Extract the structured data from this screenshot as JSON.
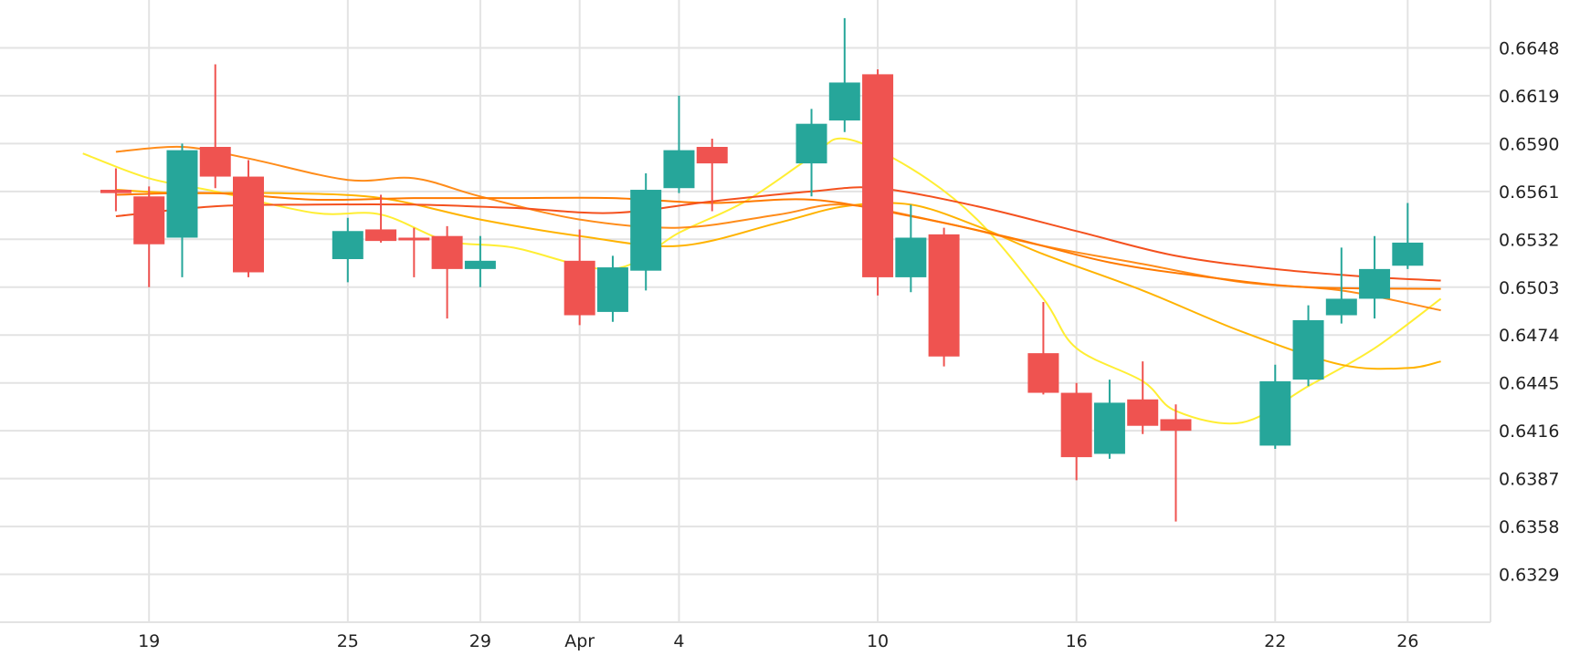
{
  "chart_data": {
    "type": "candlestick",
    "title": "",
    "xlabel": "",
    "ylabel": "",
    "ylim": [
      0.63,
      0.6677
    ],
    "y_ticks": [
      "0.6648",
      "0.6619",
      "0.6590",
      "0.6561",
      "0.6532",
      "0.6503",
      "0.6474",
      "0.6445",
      "0.6416",
      "0.6387",
      "0.6358",
      "0.6329"
    ],
    "x_ticks": [
      {
        "label": "19",
        "date": "2024-03-19"
      },
      {
        "label": "25",
        "date": "2024-03-25"
      },
      {
        "label": "29",
        "date": "2024-03-29"
      },
      {
        "label": "Apr",
        "date": "2024-04-01"
      },
      {
        "label": "4",
        "date": "2024-04-04"
      },
      {
        "label": "10",
        "date": "2024-04-10"
      },
      {
        "label": "16",
        "date": "2024-04-16"
      },
      {
        "label": "22",
        "date": "2024-04-22"
      },
      {
        "label": "26",
        "date": "2024-04-26"
      }
    ],
    "x_range": [
      "2024-03-14T12:00",
      "2024-04-28T12:00"
    ],
    "grid": true,
    "colors": {
      "up": "#26a69a",
      "down": "#ef5350",
      "grid": "#e3e3e3"
    },
    "candles": [
      {
        "date": "2024-03-18",
        "open": 0.6562,
        "high": 0.6575,
        "low": 0.6549,
        "close": 0.656
      },
      {
        "date": "2024-03-19",
        "open": 0.6558,
        "high": 0.6564,
        "low": 0.6503,
        "close": 0.6529
      },
      {
        "date": "2024-03-20",
        "open": 0.6533,
        "high": 0.659,
        "low": 0.6509,
        "close": 0.6586
      },
      {
        "date": "2024-03-21",
        "open": 0.6588,
        "high": 0.6638,
        "low": 0.6563,
        "close": 0.657
      },
      {
        "date": "2024-03-22",
        "open": 0.657,
        "high": 0.658,
        "low": 0.6509,
        "close": 0.6512
      },
      {
        "date": "2024-03-25",
        "open": 0.652,
        "high": 0.6545,
        "low": 0.6506,
        "close": 0.6537
      },
      {
        "date": "2024-03-26",
        "open": 0.6538,
        "high": 0.6559,
        "low": 0.653,
        "close": 0.6531
      },
      {
        "date": "2024-03-27",
        "open": 0.6533,
        "high": 0.6539,
        "low": 0.6509,
        "close": 0.6532
      },
      {
        "date": "2024-03-28",
        "open": 0.6534,
        "high": 0.654,
        "low": 0.6484,
        "close": 0.6514
      },
      {
        "date": "2024-03-29",
        "open": 0.6514,
        "high": 0.6534,
        "low": 0.6503,
        "close": 0.6519
      },
      {
        "date": "2024-04-01",
        "open": 0.6519,
        "high": 0.6538,
        "low": 0.648,
        "close": 0.6486
      },
      {
        "date": "2024-04-02",
        "open": 0.6488,
        "high": 0.6522,
        "low": 0.6482,
        "close": 0.6515
      },
      {
        "date": "2024-04-03",
        "open": 0.6513,
        "high": 0.6572,
        "low": 0.6501,
        "close": 0.6562
      },
      {
        "date": "2024-04-04",
        "open": 0.6563,
        "high": 0.6619,
        "low": 0.656,
        "close": 0.6586
      },
      {
        "date": "2024-04-05",
        "open": 0.6588,
        "high": 0.6593,
        "low": 0.6549,
        "close": 0.6578
      },
      {
        "date": "2024-04-08",
        "open": 0.6578,
        "high": 0.6611,
        "low": 0.6558,
        "close": 0.6602
      },
      {
        "date": "2024-04-09",
        "open": 0.6604,
        "high": 0.6666,
        "low": 0.6597,
        "close": 0.6627
      },
      {
        "date": "2024-04-10",
        "open": 0.6632,
        "high": 0.6635,
        "low": 0.6498,
        "close": 0.6509
      },
      {
        "date": "2024-04-11",
        "open": 0.6509,
        "high": 0.6553,
        "low": 0.65,
        "close": 0.6533
      },
      {
        "date": "2024-04-12",
        "open": 0.6535,
        "high": 0.6539,
        "low": 0.6455,
        "close": 0.6461
      },
      {
        "date": "2024-04-15",
        "open": 0.6463,
        "high": 0.6494,
        "low": 0.6438,
        "close": 0.6439
      },
      {
        "date": "2024-04-16",
        "open": 0.6439,
        "high": 0.6445,
        "low": 0.6386,
        "close": 0.64
      },
      {
        "date": "2024-04-17",
        "open": 0.6402,
        "high": 0.6447,
        "low": 0.6399,
        "close": 0.6433
      },
      {
        "date": "2024-04-18",
        "open": 0.6435,
        "high": 0.6458,
        "low": 0.6414,
        "close": 0.6419
      },
      {
        "date": "2024-04-19",
        "open": 0.6423,
        "high": 0.6432,
        "low": 0.6361,
        "close": 0.6416
      },
      {
        "date": "2024-04-22",
        "open": 0.6407,
        "high": 0.6456,
        "low": 0.6405,
        "close": 0.6446
      },
      {
        "date": "2024-04-23",
        "open": 0.6447,
        "high": 0.6492,
        "low": 0.6443,
        "close": 0.6483
      },
      {
        "date": "2024-04-24",
        "open": 0.6486,
        "high": 0.6527,
        "low": 0.6481,
        "close": 0.6496
      },
      {
        "date": "2024-04-25",
        "open": 0.6496,
        "high": 0.6534,
        "low": 0.6484,
        "close": 0.6514
      },
      {
        "date": "2024-04-26",
        "open": 0.6516,
        "high": 0.6554,
        "low": 0.6514,
        "close": 0.653
      }
    ],
    "moving_averages": [
      {
        "color": "#ffee33",
        "points": [
          {
            "date": "2024-03-17",
            "value": 0.6584
          },
          {
            "date": "2024-03-19",
            "value": 0.6569
          },
          {
            "date": "2024-03-21",
            "value": 0.6561
          },
          {
            "date": "2024-03-24",
            "value": 0.6548
          },
          {
            "date": "2024-03-26",
            "value": 0.6547
          },
          {
            "date": "2024-03-28",
            "value": 0.6531
          },
          {
            "date": "2024-03-30",
            "value": 0.6527
          },
          {
            "date": "2024-04-02",
            "value": 0.6514
          },
          {
            "date": "2024-04-04",
            "value": 0.6536
          },
          {
            "date": "2024-04-06",
            "value": 0.6555
          },
          {
            "date": "2024-04-08",
            "value": 0.6582
          },
          {
            "date": "2024-04-09",
            "value": 0.6593
          },
          {
            "date": "2024-04-11",
            "value": 0.6575
          },
          {
            "date": "2024-04-13",
            "value": 0.6544
          },
          {
            "date": "2024-04-15",
            "value": 0.6496
          },
          {
            "date": "2024-04-16",
            "value": 0.6466
          },
          {
            "date": "2024-04-18",
            "value": 0.6446
          },
          {
            "date": "2024-04-19",
            "value": 0.6428
          },
          {
            "date": "2024-04-21",
            "value": 0.6421
          },
          {
            "date": "2024-04-23",
            "value": 0.6443
          },
          {
            "date": "2024-04-25",
            "value": 0.6466
          },
          {
            "date": "2024-04-27",
            "value": 0.6496
          }
        ]
      },
      {
        "color": "#ffb300",
        "points": [
          {
            "date": "2024-03-18",
            "value": 0.6562
          },
          {
            "date": "2024-03-20",
            "value": 0.656
          },
          {
            "date": "2024-03-23",
            "value": 0.656
          },
          {
            "date": "2024-03-26",
            "value": 0.6557
          },
          {
            "date": "2024-03-29",
            "value": 0.6544
          },
          {
            "date": "2024-04-01",
            "value": 0.6534
          },
          {
            "date": "2024-04-04",
            "value": 0.6528
          },
          {
            "date": "2024-04-07",
            "value": 0.6542
          },
          {
            "date": "2024-04-09",
            "value": 0.6552
          },
          {
            "date": "2024-04-11",
            "value": 0.6553
          },
          {
            "date": "2024-04-13",
            "value": 0.654
          },
          {
            "date": "2024-04-15",
            "value": 0.6523
          },
          {
            "date": "2024-04-18",
            "value": 0.6501
          },
          {
            "date": "2024-04-21",
            "value": 0.6476
          },
          {
            "date": "2024-04-24",
            "value": 0.6456
          },
          {
            "date": "2024-04-26",
            "value": 0.6454
          },
          {
            "date": "2024-04-27",
            "value": 0.6458
          }
        ]
      },
      {
        "color": "#ff8c1a",
        "points": [
          {
            "date": "2024-03-18",
            "value": 0.6585
          },
          {
            "date": "2024-03-20",
            "value": 0.6588
          },
          {
            "date": "2024-03-22",
            "value": 0.6581
          },
          {
            "date": "2024-03-25",
            "value": 0.6568
          },
          {
            "date": "2024-03-27",
            "value": 0.6569
          },
          {
            "date": "2024-03-29",
            "value": 0.6558
          },
          {
            "date": "2024-04-01",
            "value": 0.6544
          },
          {
            "date": "2024-04-04",
            "value": 0.6539
          },
          {
            "date": "2024-04-07",
            "value": 0.6547
          },
          {
            "date": "2024-04-09",
            "value": 0.6553
          },
          {
            "date": "2024-04-12",
            "value": 0.6542
          },
          {
            "date": "2024-04-15",
            "value": 0.6528
          },
          {
            "date": "2024-04-18",
            "value": 0.6517
          },
          {
            "date": "2024-04-21",
            "value": 0.6506
          },
          {
            "date": "2024-04-24",
            "value": 0.6501
          },
          {
            "date": "2024-04-27",
            "value": 0.6489
          }
        ]
      },
      {
        "color": "#ff7a00",
        "points": [
          {
            "date": "2024-03-18",
            "value": 0.6559
          },
          {
            "date": "2024-03-21",
            "value": 0.656
          },
          {
            "date": "2024-03-24",
            "value": 0.6556
          },
          {
            "date": "2024-03-27",
            "value": 0.6557
          },
          {
            "date": "2024-03-30",
            "value": 0.6557
          },
          {
            "date": "2024-04-02",
            "value": 0.6557
          },
          {
            "date": "2024-04-05",
            "value": 0.6554
          },
          {
            "date": "2024-04-08",
            "value": 0.6556
          },
          {
            "date": "2024-04-11",
            "value": 0.6546
          },
          {
            "date": "2024-04-14",
            "value": 0.6533
          },
          {
            "date": "2024-04-17",
            "value": 0.6518
          },
          {
            "date": "2024-04-20",
            "value": 0.6509
          },
          {
            "date": "2024-04-23",
            "value": 0.6503
          },
          {
            "date": "2024-04-27",
            "value": 0.6502
          }
        ]
      },
      {
        "color": "#f4511e",
        "points": [
          {
            "date": "2024-03-18",
            "value": 0.6546
          },
          {
            "date": "2024-03-21",
            "value": 0.6552
          },
          {
            "date": "2024-03-24",
            "value": 0.6553
          },
          {
            "date": "2024-03-27",
            "value": 0.6553
          },
          {
            "date": "2024-03-30",
            "value": 0.6551
          },
          {
            "date": "2024-04-02",
            "value": 0.6548
          },
          {
            "date": "2024-04-05",
            "value": 0.6555
          },
          {
            "date": "2024-04-08",
            "value": 0.6561
          },
          {
            "date": "2024-04-10",
            "value": 0.6563
          },
          {
            "date": "2024-04-13",
            "value": 0.6552
          },
          {
            "date": "2024-04-16",
            "value": 0.6537
          },
          {
            "date": "2024-04-19",
            "value": 0.6522
          },
          {
            "date": "2024-04-22",
            "value": 0.6514
          },
          {
            "date": "2024-04-25",
            "value": 0.6509
          },
          {
            "date": "2024-04-27",
            "value": 0.6507
          }
        ]
      }
    ]
  }
}
